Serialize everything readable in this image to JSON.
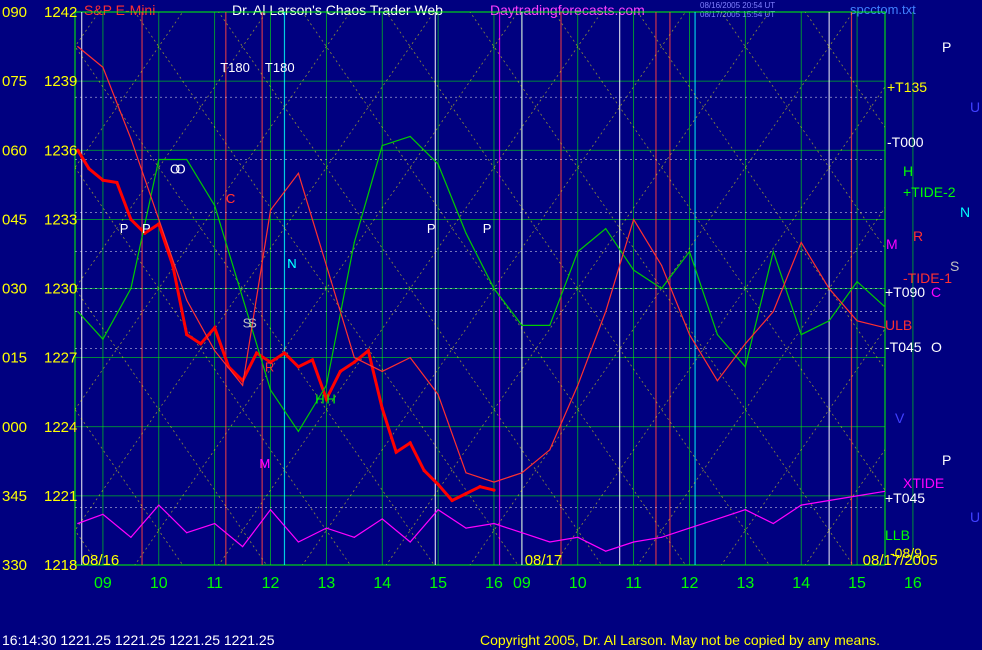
{
  "header": {
    "instrument": "S&P E-Mini",
    "title": "Dr. Al Larson's Chaos Trader Web",
    "site": "Daytradingforecasts.com",
    "timestamp_1": "08/16/2005 20:54 UT",
    "timestamp_2": "08/17/2005 15:54 UT",
    "file": "spcctom.txt"
  },
  "status_line": "16:14:30  1221.25 1221.25 1221.25 1221.25",
  "copyright": "Copyright 2005, Dr. Al Larson. May not be copied by any means.",
  "colors": {
    "background": "#000080",
    "price_axis": "#ffff00",
    "time_axis": "#00ff00",
    "price_bars": "#ff0000",
    "tide": "#00cc00",
    "xtide": "#ff00ff",
    "flux_line": "#ff3030",
    "grid_green": "#00ff00",
    "gann_dotted": "#ffff00"
  },
  "chart_data": {
    "type": "line",
    "title": "S&P E-Mini",
    "y_axis": {
      "ticks": [
        {
          "angle": "090",
          "price": "1242",
          "value": 1242
        },
        {
          "angle": "075",
          "price": "1239",
          "value": 1239
        },
        {
          "angle": "060",
          "price": "1236",
          "value": 1236
        },
        {
          "angle": "045",
          "price": "1233",
          "value": 1233
        },
        {
          "angle": "030",
          "price": "1230",
          "value": 1230
        },
        {
          "angle": "015",
          "price": "1227",
          "value": 1227
        },
        {
          "angle": "000",
          "price": "1224",
          "value": 1224
        },
        {
          "angle": "345",
          "price": "1221",
          "value": 1221
        },
        {
          "angle": "330",
          "price": "1218",
          "value": 1218
        }
      ],
      "ylim": [
        1218,
        1242
      ]
    },
    "x_axis": {
      "day_labels": [
        "08/16",
        "08/17",
        "08/17/2005"
      ],
      "hour_labels": [
        "09",
        "10",
        "11",
        "12",
        "13",
        "14",
        "15",
        "16",
        "09",
        "10",
        "11",
        "12",
        "13",
        "14",
        "15",
        "16"
      ]
    },
    "right_labels": [
      {
        "text": "P",
        "color": "#ffffff"
      },
      {
        "text": "+T135",
        "color": "#ffff00"
      },
      {
        "text": "U",
        "color": "#4040ff"
      },
      {
        "text": "-T000",
        "color": "#ffffff"
      },
      {
        "text": "H",
        "color": "#00ff00"
      },
      {
        "text": "+TIDE-2",
        "color": "#00ff00"
      },
      {
        "text": "N",
        "color": "#00ffff"
      },
      {
        "text": "R",
        "color": "#ff3030"
      },
      {
        "text": "M",
        "color": "#ff00ff"
      },
      {
        "text": "S",
        "color": "#c0c0c0"
      },
      {
        "text": "-TIDE-1",
        "color": "#ff3030"
      },
      {
        "text": "+T090",
        "color": "#ffffff"
      },
      {
        "text": "C",
        "color": "#ff00ff"
      },
      {
        "text": "ULB",
        "color": "#ff3030"
      },
      {
        "text": "-T045",
        "color": "#ffffff"
      },
      {
        "text": "O",
        "color": "#ffffff"
      },
      {
        "text": "V",
        "color": "#4040ff"
      },
      {
        "text": "P",
        "color": "#ffffff"
      },
      {
        "text": "XTIDE",
        "color": "#ff00ff"
      },
      {
        "text": "+T045",
        "color": "#ffffff"
      },
      {
        "text": "U",
        "color": "#4040ff"
      },
      {
        "text": "LLB",
        "color": "#00ff00"
      },
      {
        "text": "-08/9",
        "color": "#ffff00"
      }
    ],
    "chart_markers": [
      {
        "text": "T180",
        "x": 11.1,
        "y": 1239.4,
        "color": "#ffffff"
      },
      {
        "text": "T180",
        "x": 11.9,
        "y": 1239.4,
        "color": "#ffffff"
      },
      {
        "text": "P",
        "x": 9.3,
        "y": 1232.4,
        "color": "#ffffff"
      },
      {
        "text": "P",
        "x": 14.8,
        "y": 1232.4,
        "color": "#ffffff"
      },
      {
        "text": "P",
        "x": 9.7,
        "y": 1232.4,
        "color": "#ffffff"
      },
      {
        "text": "P",
        "x": 15.8,
        "y": 1232.4,
        "color": "#ffffff"
      },
      {
        "text": "O",
        "x": 10.2,
        "y": 1235.0,
        "color": "#ffffff"
      },
      {
        "text": "O",
        "x": 10.3,
        "y": 1235.0,
        "color": "#ffffff"
      },
      {
        "text": "C",
        "x": 11.2,
        "y": 1233.7,
        "color": "#ff3030"
      },
      {
        "text": "C",
        "x": 11.2,
        "y": 1233.7,
        "color": "#ff3030"
      },
      {
        "text": "N",
        "x": 12.3,
        "y": 1230.9,
        "color": "#00ffff"
      },
      {
        "text": "N",
        "x": 12.3,
        "y": 1230.9,
        "color": "#00ffff"
      },
      {
        "text": "S",
        "x": 11.6,
        "y": 1228.3,
        "color": "#c0c0c0"
      },
      {
        "text": "S",
        "x": 11.5,
        "y": 1228.3,
        "color": "#c0c0c0"
      },
      {
        "text": "H",
        "x": 12.8,
        "y": 1225.0,
        "color": "#00ff00"
      },
      {
        "text": "H",
        "x": 13.0,
        "y": 1225.0,
        "color": "#00ff00"
      },
      {
        "text": "M",
        "x": 11.8,
        "y": 1222.2,
        "color": "#ff00ff"
      },
      {
        "text": "M",
        "x": 11.8,
        "y": 1222.2,
        "color": "#ff00ff"
      },
      {
        "text": "R",
        "x": 11.9,
        "y": 1226.4,
        "color": "#ff3030"
      }
    ],
    "series": [
      {
        "name": "S&P E-Mini",
        "color": "#ff0000",
        "day": 1,
        "x": [
          8.55,
          8.75,
          9.0,
          9.25,
          9.5,
          9.75,
          10.0,
          10.25,
          10.5,
          10.75,
          11.0,
          11.25,
          11.5,
          11.75,
          12.0,
          12.25,
          12.5,
          12.75,
          13.0,
          13.25,
          13.5,
          13.75,
          14.0,
          14.25,
          14.5,
          14.75,
          15.0,
          15.25,
          15.5,
          15.75,
          16.0
        ],
        "y": [
          1236.0,
          1235.2,
          1234.7,
          1234.6,
          1233.0,
          1232.4,
          1232.8,
          1231.0,
          1228.0,
          1227.6,
          1228.3,
          1226.6,
          1226.0,
          1227.2,
          1226.8,
          1227.2,
          1226.6,
          1226.9,
          1225.2,
          1226.4,
          1226.8,
          1227.3,
          1224.8,
          1222.9,
          1223.3,
          1222.1,
          1221.5,
          1220.8,
          1221.1,
          1221.4,
          1221.25
        ]
      },
      {
        "name": "TIDE",
        "color": "#00cc00",
        "x": [
          8.55,
          9.0,
          9.5,
          10.0,
          10.5,
          11.0,
          11.5,
          12.0,
          12.5,
          13.0,
          13.5,
          14.0,
          14.5,
          15.0,
          15.5,
          16.0,
          16.5,
          17.0,
          17.5,
          18.0,
          18.5,
          19.0,
          19.5,
          20.0,
          20.5,
          21.0,
          21.5,
          22.0,
          22.5,
          23.0
        ],
        "y": [
          1229.0,
          1227.8,
          1230.0,
          1235.6,
          1235.6,
          1233.6,
          1229.6,
          1225.6,
          1223.8,
          1225.8,
          1232.0,
          1236.2,
          1236.6,
          1235.4,
          1232.4,
          1230.0,
          1228.4,
          1228.4,
          1231.6,
          1232.6,
          1230.8,
          1230.0,
          1231.6,
          1228.0,
          1226.6,
          1231.6,
          1228.0,
          1228.6,
          1230.3,
          1229.2
        ]
      },
      {
        "name": "FLUX",
        "color": "#ff3030",
        "x": [
          8.55,
          9.0,
          9.5,
          10.0,
          10.5,
          11.0,
          11.5,
          12.0,
          12.5,
          13.0,
          13.5,
          14.0,
          14.5,
          15.0,
          15.5,
          16.0,
          16.5,
          17.0,
          17.5,
          18.0,
          18.5,
          19.0,
          19.5,
          20.0,
          20.5,
          21.0,
          21.5,
          22.0,
          22.5,
          23.0
        ],
        "y": [
          1240.5,
          1239.6,
          1236.5,
          1233.0,
          1229.5,
          1227.3,
          1225.8,
          1233.4,
          1235.0,
          1231.0,
          1227.0,
          1226.4,
          1227.0,
          1225.4,
          1222.0,
          1221.6,
          1222.0,
          1223.0,
          1225.8,
          1229.0,
          1233.0,
          1231.0,
          1228.0,
          1226.0,
          1227.6,
          1229.0,
          1232.0,
          1230.0,
          1228.6,
          1228.3
        ]
      },
      {
        "name": "XTIDE",
        "color": "#ff00ff",
        "x": [
          8.55,
          9.0,
          9.5,
          10.0,
          10.5,
          11.0,
          11.5,
          12.0,
          12.5,
          13.0,
          13.5,
          14.0,
          14.5,
          15.0,
          15.5,
          16.0,
          16.5,
          17.0,
          17.5,
          18.0,
          18.5,
          19.0,
          19.5,
          20.0,
          20.5,
          21.0,
          21.5,
          22.0,
          22.5,
          23.0
        ],
        "y": [
          1219.8,
          1220.2,
          1219.2,
          1220.6,
          1219.4,
          1219.8,
          1218.8,
          1220.4,
          1219.0,
          1219.6,
          1219.2,
          1220.0,
          1219.0,
          1220.4,
          1219.6,
          1219.8,
          1219.4,
          1219.0,
          1219.2,
          1218.6,
          1219.0,
          1219.2,
          1219.6,
          1220.0,
          1220.4,
          1219.8,
          1220.6,
          1220.8,
          1221.0,
          1221.2
        ]
      }
    ]
  }
}
